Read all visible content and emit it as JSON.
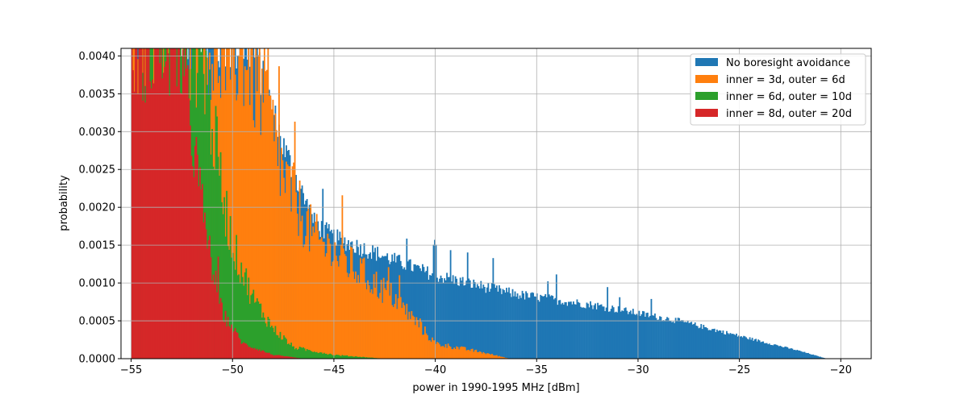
{
  "chart_data": {
    "type": "histogram",
    "xlabel": "power in 1990-1995 MHz [dBm]",
    "ylabel": "probability",
    "xlim": [
      -55.5,
      -18.5
    ],
    "ylim": [
      0,
      0.0041
    ],
    "xticks": [
      -55,
      -50,
      -45,
      -40,
      -35,
      -30,
      -25,
      -20
    ],
    "yticks": [
      0.0,
      0.0005,
      0.001,
      0.0015,
      0.002,
      0.0025,
      0.003,
      0.0035,
      0.004
    ],
    "xtick_labels": [
      "−55",
      "−50",
      "−45",
      "−40",
      "−35",
      "−30",
      "−25",
      "−20"
    ],
    "ytick_labels": [
      "0.0000",
      "0.0005",
      "0.0010",
      "0.0015",
      "0.0020",
      "0.0025",
      "0.0030",
      "0.0035",
      "0.0040"
    ],
    "grid": true,
    "legend_position": "top-right",
    "series": [
      {
        "name": "No boresight avoidance",
        "color": "#1f77b4",
        "x_range": [
          -55,
          -20.7
        ],
        "envelope": [
          [
            -55,
            0.0041
          ],
          [
            -49,
            0.0041
          ],
          [
            -47.5,
            0.0028
          ],
          [
            -46,
            0.0018
          ],
          [
            -45,
            0.0016
          ],
          [
            -43,
            0.0014
          ],
          [
            -40,
            0.0011
          ],
          [
            -36,
            0.00085
          ],
          [
            -32,
            0.0007
          ],
          [
            -28,
            0.0005
          ],
          [
            -25,
            0.0003
          ],
          [
            -22,
            0.0001
          ],
          [
            -20.7,
            0.0
          ]
        ]
      },
      {
        "name": "inner = 3d, outer = 6d",
        "color": "#ff7f0e",
        "x_range": [
          -55,
          -36.3
        ],
        "envelope": [
          [
            -55,
            0.0041
          ],
          [
            -49.5,
            0.0041
          ],
          [
            -48.5,
            0.0035
          ],
          [
            -47.5,
            0.0024
          ],
          [
            -46,
            0.0016
          ],
          [
            -44,
            0.0012
          ],
          [
            -42,
            0.0008
          ],
          [
            -41,
            0.0005
          ],
          [
            -40,
            0.0002
          ],
          [
            -38,
            0.0001
          ],
          [
            -36.3,
            0.0
          ]
        ]
      },
      {
        "name": "inner = 6d, outer = 10d",
        "color": "#2ca02c",
        "x_range": [
          -55,
          -42.5
        ],
        "envelope": [
          [
            -55,
            0.0041
          ],
          [
            -51.5,
            0.0041
          ],
          [
            -51,
            0.0031
          ],
          [
            -50.5,
            0.0022
          ],
          [
            -50,
            0.0015
          ],
          [
            -49,
            0.0008
          ],
          [
            -48,
            0.0004
          ],
          [
            -47,
            0.00015
          ],
          [
            -45,
            5e-05
          ],
          [
            -42.5,
            0.0
          ]
        ]
      },
      {
        "name": "inner = 8d, outer = 20d",
        "color": "#d62728",
        "x_range": [
          -55,
          -46.5
        ],
        "envelope": [
          [
            -55,
            0.0041
          ],
          [
            -52.7,
            0.0041
          ],
          [
            -52,
            0.003
          ],
          [
            -51.5,
            0.002
          ],
          [
            -51,
            0.0012
          ],
          [
            -50.5,
            0.0006
          ],
          [
            -49.5,
            0.0002
          ],
          [
            -48,
            5e-05
          ],
          [
            -46.5,
            0.0
          ]
        ]
      }
    ]
  }
}
